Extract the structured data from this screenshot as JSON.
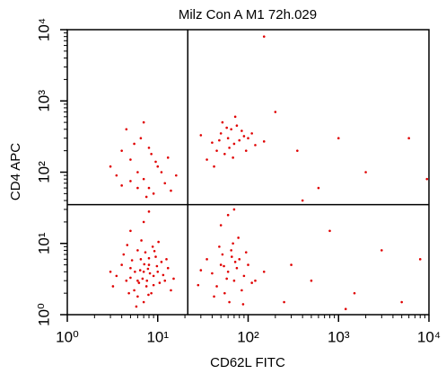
{
  "chart_data": {
    "type": "scatter",
    "title": "Milz Con A M1 72h.029",
    "x_label": "CD62L FITC",
    "y_label": "CD4 APC",
    "log_x": true,
    "log_y": true,
    "color": "#e00000",
    "xlim": [
      1,
      10000
    ],
    "ylim": [
      1,
      10000
    ],
    "xticks": [
      {
        "value": 1,
        "label": "10⁰"
      },
      {
        "value": 10,
        "label": "10¹"
      },
      {
        "value": 100,
        "label": "10²"
      },
      {
        "value": 1000,
        "label": "10³"
      },
      {
        "value": 10000,
        "label": "10⁴"
      }
    ],
    "yticks": [
      {
        "value": 1,
        "label": "10⁰"
      },
      {
        "value": 10,
        "label": "10¹"
      },
      {
        "value": 100,
        "label": "10²"
      },
      {
        "value": 1000,
        "label": "10³"
      },
      {
        "value": 10000,
        "label": "10⁴"
      }
    ],
    "minor_ticks": [
      2,
      3,
      4,
      5,
      6,
      7,
      8,
      9,
      20,
      30,
      40,
      50,
      60,
      70,
      80,
      90,
      200,
      300,
      400,
      500,
      600,
      700,
      800,
      900,
      2000,
      3000,
      4000,
      5000,
      6000,
      7000,
      8000,
      9000
    ],
    "quadrant": {
      "x": 21.5,
      "y": 35
    },
    "x": [
      7,
      6,
      8,
      5,
      9,
      7.5,
      6.5,
      4.5,
      10,
      8.5,
      5.5,
      12,
      6,
      7,
      9.5,
      4,
      3.5,
      11,
      6.8,
      7.8,
      5.2,
      8.2,
      6.2,
      9,
      13,
      4.8,
      7.3,
      10.5,
      5.8,
      8.8,
      3.2,
      14,
      6.6,
      7.1,
      5,
      9.8,
      4.2,
      11.5,
      6.4,
      8,
      7.6,
      5.6,
      12.5,
      3,
      15,
      6,
      9.2,
      4.6,
      7.9,
      10.2,
      60,
      70,
      50,
      80,
      45,
      65,
      90,
      55,
      75,
      40,
      100,
      35,
      62,
      85,
      52,
      120,
      30,
      68,
      95,
      58,
      48,
      110,
      72,
      42,
      150,
      78,
      28,
      66,
      88,
      54,
      7,
      6,
      8,
      5,
      9,
      4,
      10,
      6.5,
      3.5,
      12,
      7.5,
      5.5,
      8.5,
      4.5,
      11,
      6,
      9.5,
      3,
      14,
      7,
      5,
      8,
      13,
      4,
      16,
      60,
      70,
      50,
      80,
      45,
      65,
      90,
      55,
      75,
      40,
      100,
      35,
      62,
      85,
      52,
      120,
      30,
      68,
      95,
      58,
      48,
      110,
      72,
      42,
      150,
      7,
      60,
      8,
      50,
      5,
      70,
      300,
      500,
      1500,
      3000,
      800,
      400,
      2000,
      8000,
      200,
      1000,
      6000,
      9500,
      150,
      250,
      1200,
      5000,
      600,
      350
    ],
    "values": [
      4,
      3,
      5,
      4.5,
      3.5,
      2.5,
      6,
      3,
      4,
      2,
      2.2,
      3,
      8,
      1.5,
      6.5,
      5,
      3.5,
      5.5,
      3.2,
      4.4,
      5.8,
      3.8,
      2.8,
      2.6,
      4.5,
      2,
      7.5,
      2.8,
      1.3,
      9,
      2.5,
      2.2,
      11,
      5.1,
      3.3,
      4.8,
      7,
      3.6,
      4.2,
      6.2,
      3,
      4,
      6,
      4,
      3.2,
      1.8,
      7.8,
      9.5,
      1.9,
      10.5,
      4,
      3,
      5,
      6,
      2.5,
      8,
      3.5,
      2,
      4.5,
      3.8,
      5,
      6,
      1.5,
      2.2,
      7,
      3,
      4.2,
      10,
      7.5,
      3.2,
      9,
      2.8,
      5.5,
      1.8,
      4,
      12,
      2.6,
      6.5,
      1.4,
      4.8,
      80,
      100,
      60,
      150,
      50,
      200,
      120,
      300,
      90,
      70,
      45,
      250,
      180,
      400,
      100,
      60,
      140,
      120,
      55,
      500,
      75,
      220,
      160,
      65,
      90,
      300,
      250,
      350,
      280,
      200,
      400,
      320,
      180,
      450,
      260,
      300,
      150,
      220,
      380,
      500,
      240,
      330,
      160,
      200,
      420,
      280,
      350,
      600,
      120,
      270,
      20,
      25,
      28,
      18,
      15,
      30,
      5,
      3,
      2,
      8,
      15,
      40,
      100,
      6,
      700,
      300,
      300,
      80,
      8000,
      1.5,
      1.2,
      1.5,
      60,
      200
    ]
  }
}
